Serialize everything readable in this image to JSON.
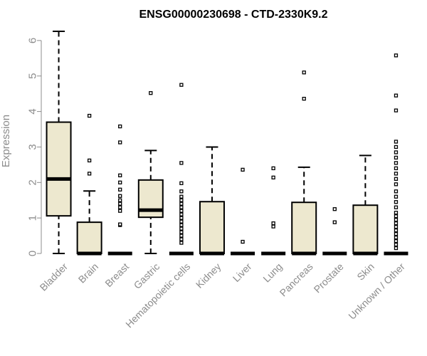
{
  "chart_data": {
    "type": "boxplot",
    "title": "ENSG00000230698 - CTD-2330K9.2",
    "xlabel": "",
    "ylabel": "Expression",
    "ylim": [
      0,
      6.3
    ],
    "yticks": [
      0,
      1,
      2,
      3,
      4,
      5,
      6
    ],
    "grid": false,
    "legend": "none",
    "box_fill": "#ede8cf",
    "categories": [
      "Bladder",
      "Brain",
      "Breast",
      "Gastric",
      "Hematopoietic cells",
      "Kidney",
      "Liver",
      "Lung",
      "Pancreas",
      "Prostate",
      "Skin",
      "Unknown / Other"
    ],
    "boxes": [
      {
        "q1": 1.06,
        "median": 2.1,
        "q3": 3.7,
        "whisker_low": 0,
        "whisker_high": 6.26,
        "outliers": []
      },
      {
        "q1": 0,
        "median": 0,
        "q3": 0.88,
        "whisker_low": 0,
        "whisker_high": 1.76,
        "outliers": [
          2.25,
          2.62,
          3.88
        ]
      },
      {
        "q1": 0,
        "median": 0,
        "q3": 0,
        "whisker_low": 0,
        "whisker_high": 0,
        "outliers": [
          0.8,
          0.82,
          1.2,
          1.3,
          1.4,
          1.5,
          1.62,
          1.8,
          2.0,
          2.2,
          3.13,
          3.58
        ]
      },
      {
        "q1": 1.02,
        "median": 1.22,
        "q3": 2.07,
        "whisker_low": 0,
        "whisker_high": 2.9,
        "outliers": [
          4.52
        ]
      },
      {
        "q1": 0,
        "median": 0,
        "q3": 0,
        "whisker_low": 0,
        "whisker_high": 0,
        "outliers": [
          0.3,
          0.4,
          0.5,
          0.6,
          0.7,
          0.8,
          0.9,
          1.0,
          1.1,
          1.2,
          1.3,
          1.4,
          1.5,
          1.6,
          1.75,
          1.98,
          2.55,
          4.75
        ]
      },
      {
        "q1": 0,
        "median": 0,
        "q3": 1.46,
        "whisker_low": 0,
        "whisker_high": 3.0,
        "outliers": []
      },
      {
        "q1": 0,
        "median": 0,
        "q3": 0,
        "whisker_low": 0,
        "whisker_high": 0,
        "outliers": [
          0.33,
          2.36
        ]
      },
      {
        "q1": 0,
        "median": 0,
        "q3": 0,
        "whisker_low": 0,
        "whisker_high": 0,
        "outliers": [
          0.76,
          0.85,
          2.14,
          2.4
        ]
      },
      {
        "q1": 0,
        "median": 0,
        "q3": 1.44,
        "whisker_low": 0,
        "whisker_high": 2.43,
        "outliers": [
          4.36,
          5.1
        ]
      },
      {
        "q1": 0,
        "median": 0,
        "q3": 0,
        "whisker_low": 0,
        "whisker_high": 0,
        "outliers": [
          0.88,
          1.25
        ]
      },
      {
        "q1": 0,
        "median": 0,
        "q3": 1.36,
        "whisker_low": 0,
        "whisker_high": 2.76,
        "outliers": []
      },
      {
        "q1": 0,
        "median": 0,
        "q3": 0,
        "whisker_low": 0,
        "whisker_high": 0,
        "outliers": [
          0.15,
          0.25,
          0.35,
          0.45,
          0.55,
          0.65,
          0.75,
          0.85,
          0.95,
          1.05,
          1.15,
          1.3,
          1.45,
          1.6,
          1.75,
          1.95,
          2.1,
          2.25,
          2.4,
          2.55,
          2.7,
          2.85,
          3.0,
          3.15,
          4.03,
          4.45,
          5.58
        ]
      }
    ]
  }
}
